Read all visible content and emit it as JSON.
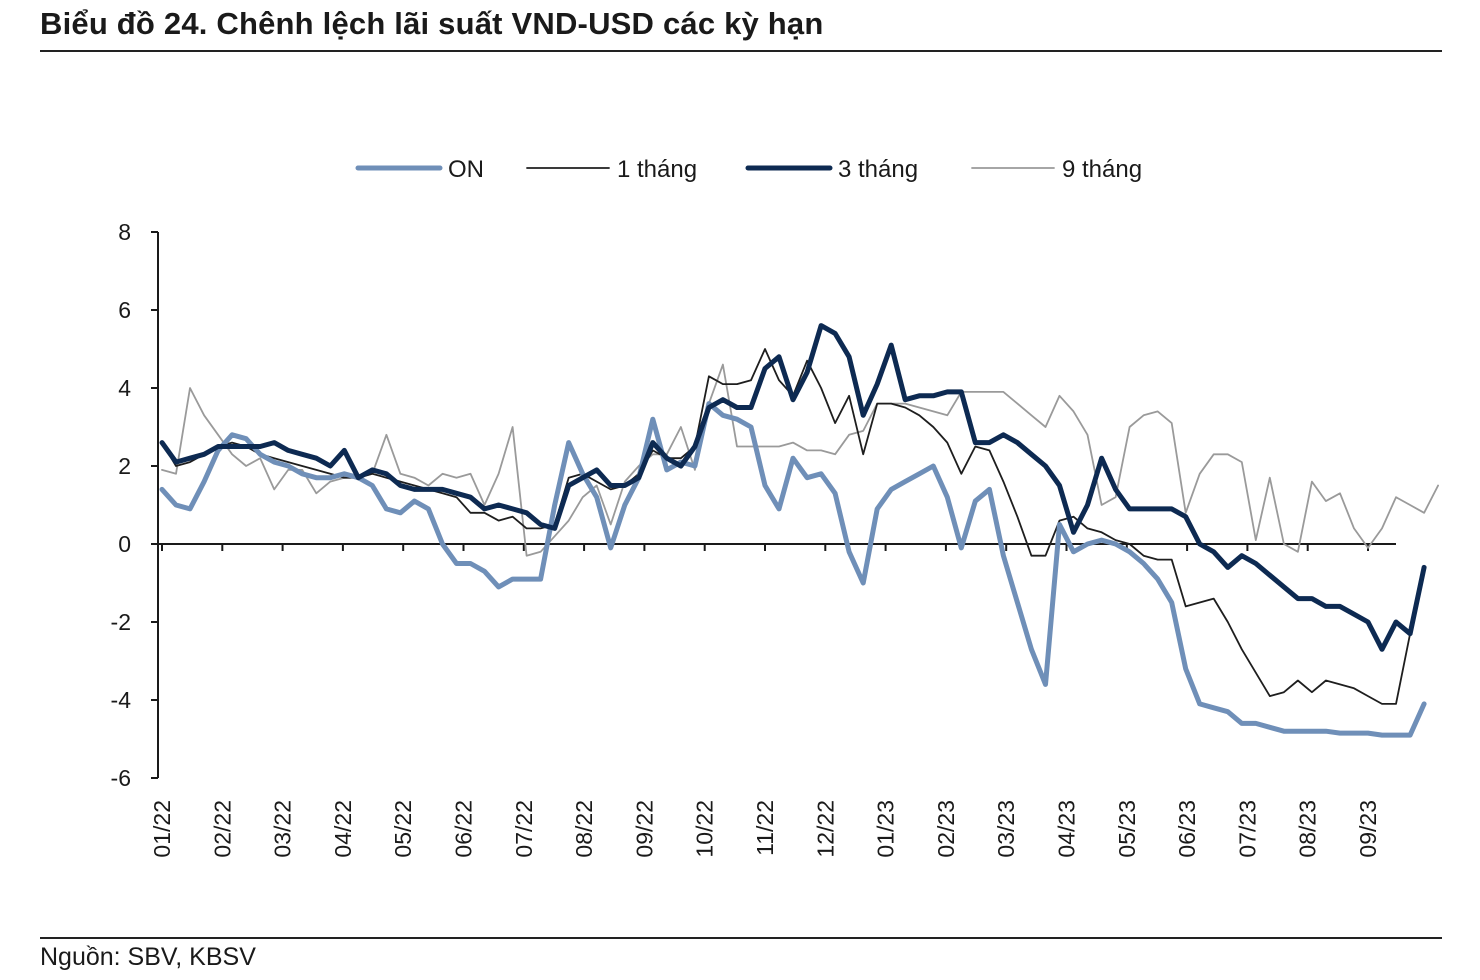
{
  "header": {
    "title": "Biểu đồ 24. Chênh lệch lãi suất VND-USD các kỳ hạn"
  },
  "footer": {
    "source": "Nguồn: SBV, KBSV"
  },
  "chart_data": {
    "type": "line",
    "title": "",
    "xlabel": "",
    "ylabel": "",
    "ylim": [
      -6,
      8
    ],
    "yticks": [
      -6,
      -4,
      -2,
      0,
      2,
      4,
      6,
      8
    ],
    "month_labels": [
      "01/22",
      "02/22",
      "03/22",
      "04/22",
      "05/22",
      "06/22",
      "07/22",
      "08/22",
      "09/22",
      "10/22",
      "11/22",
      "12/22",
      "01/23",
      "02/23",
      "03/23",
      "04/23",
      "05/23",
      "06/23",
      "07/23",
      "08/23",
      "09/23"
    ],
    "grid": false,
    "legend_position": "top-center",
    "x_note": "weekly observations; 4.3 points per month label",
    "series": [
      {
        "name": "ON",
        "color": "#6f8fb8",
        "width": 5,
        "values": [
          1.4,
          1.0,
          0.9,
          1.6,
          2.4,
          2.8,
          2.7,
          2.3,
          2.1,
          2.0,
          1.8,
          1.7,
          1.7,
          1.8,
          1.7,
          1.5,
          0.9,
          0.8,
          1.1,
          0.9,
          0.0,
          -0.5,
          -0.5,
          -0.7,
          -1.1,
          -0.9,
          -0.9,
          -0.9,
          1.0,
          2.6,
          1.8,
          1.2,
          -0.1,
          1.0,
          1.7,
          3.2,
          1.9,
          2.1,
          2.0,
          3.6,
          3.3,
          3.2,
          3.0,
          1.5,
          0.9,
          2.2,
          1.7,
          1.8,
          1.3,
          -0.2,
          -1.0,
          0.9,
          1.4,
          1.6,
          1.8,
          2.0,
          1.2,
          -0.1,
          1.1,
          1.4,
          -0.3,
          -1.5,
          -2.7,
          -3.6,
          0.5,
          -0.2,
          0.0,
          0.1,
          0.0,
          -0.2,
          -0.5,
          -0.9,
          -1.5,
          -3.2,
          -4.1,
          -4.2,
          -4.3,
          -4.6,
          -4.6,
          -4.7,
          -4.8,
          -4.8,
          -4.8,
          -4.8,
          -4.85,
          -4.85,
          -4.85,
          -4.9,
          -4.9,
          -4.9,
          -4.1
        ]
      },
      {
        "name": "1 tháng",
        "color": "#1e1e1e",
        "width": 1.8,
        "values": [
          2.6,
          2.0,
          2.1,
          2.3,
          2.5,
          2.6,
          2.5,
          2.3,
          2.2,
          2.1,
          2.0,
          1.9,
          1.8,
          1.7,
          1.7,
          1.8,
          1.7,
          1.6,
          1.5,
          1.4,
          1.3,
          1.2,
          0.8,
          0.8,
          0.6,
          0.7,
          0.4,
          0.4,
          0.5,
          1.7,
          1.8,
          1.6,
          1.4,
          1.5,
          1.8,
          2.4,
          2.2,
          2.2,
          2.5,
          4.3,
          4.1,
          4.1,
          4.2,
          5.0,
          4.2,
          3.8,
          4.7,
          4.0,
          3.1,
          3.8,
          2.3,
          3.6,
          3.6,
          3.5,
          3.3,
          3.0,
          2.6,
          1.8,
          2.5,
          2.4,
          1.6,
          0.7,
          -0.3,
          -0.3,
          0.6,
          0.7,
          0.4,
          0.3,
          0.1,
          0.0,
          -0.3,
          -0.4,
          -0.4,
          -1.6,
          -1.5,
          -1.4,
          -2.0,
          -2.7,
          -3.3,
          -3.9,
          -3.8,
          -3.5,
          -3.8,
          -3.5,
          -3.6,
          -3.7,
          -3.9,
          -4.1,
          -4.1,
          -2.3
        ]
      },
      {
        "name": "3 tháng",
        "color": "#0d2a52",
        "width": 5,
        "values": [
          2.6,
          2.1,
          2.2,
          2.3,
          2.5,
          2.5,
          2.5,
          2.5,
          2.6,
          2.4,
          2.3,
          2.2,
          2.0,
          2.4,
          1.7,
          1.9,
          1.8,
          1.5,
          1.4,
          1.4,
          1.4,
          1.3,
          1.2,
          0.9,
          1.0,
          0.9,
          0.8,
          0.5,
          0.4,
          1.5,
          1.7,
          1.9,
          1.5,
          1.5,
          1.7,
          2.6,
          2.2,
          2.0,
          2.5,
          3.5,
          3.7,
          3.5,
          3.5,
          4.5,
          4.8,
          3.7,
          4.4,
          5.6,
          5.4,
          4.8,
          3.3,
          4.1,
          5.1,
          3.7,
          3.8,
          3.8,
          3.9,
          3.9,
          2.6,
          2.6,
          2.8,
          2.6,
          2.3,
          2.0,
          1.5,
          0.3,
          1.0,
          2.2,
          1.4,
          0.9,
          0.9,
          0.9,
          0.9,
          0.7,
          0.0,
          -0.2,
          -0.6,
          -0.3,
          -0.5,
          -0.8,
          -1.1,
          -1.4,
          -1.4,
          -1.6,
          -1.6,
          -1.8,
          -2.0,
          -2.7,
          -2.0,
          -2.3,
          -0.6
        ]
      },
      {
        "name": "9 tháng",
        "color": "#9a9a9a",
        "width": 1.8,
        "values": [
          1.9,
          1.8,
          4.0,
          3.3,
          2.8,
          2.3,
          2.0,
          2.2,
          1.4,
          1.9,
          1.9,
          1.3,
          1.6,
          1.7,
          1.7,
          1.8,
          2.8,
          1.8,
          1.7,
          1.5,
          1.8,
          1.7,
          1.8,
          1.0,
          1.8,
          3.0,
          -0.3,
          -0.2,
          0.2,
          0.6,
          1.2,
          1.5,
          0.5,
          1.6,
          2.0,
          2.3,
          2.3,
          3.0,
          1.9,
          3.6,
          4.6,
          2.5,
          2.5,
          2.5,
          2.5,
          2.6,
          2.4,
          2.4,
          2.3,
          2.8,
          2.9,
          3.6,
          3.6,
          3.6,
          3.5,
          3.4,
          3.3,
          3.9,
          3.9,
          3.9,
          3.9,
          3.6,
          3.3,
          3.0,
          3.8,
          3.4,
          2.8,
          1.0,
          1.2,
          3.0,
          3.3,
          3.4,
          3.1,
          0.8,
          1.8,
          2.3,
          2.3,
          2.1,
          0.1,
          1.7,
          0.0,
          -0.2,
          1.6,
          1.1,
          1.3,
          0.4,
          -0.1,
          0.4,
          1.2,
          1.0,
          0.8,
          1.5
        ]
      }
    ]
  }
}
